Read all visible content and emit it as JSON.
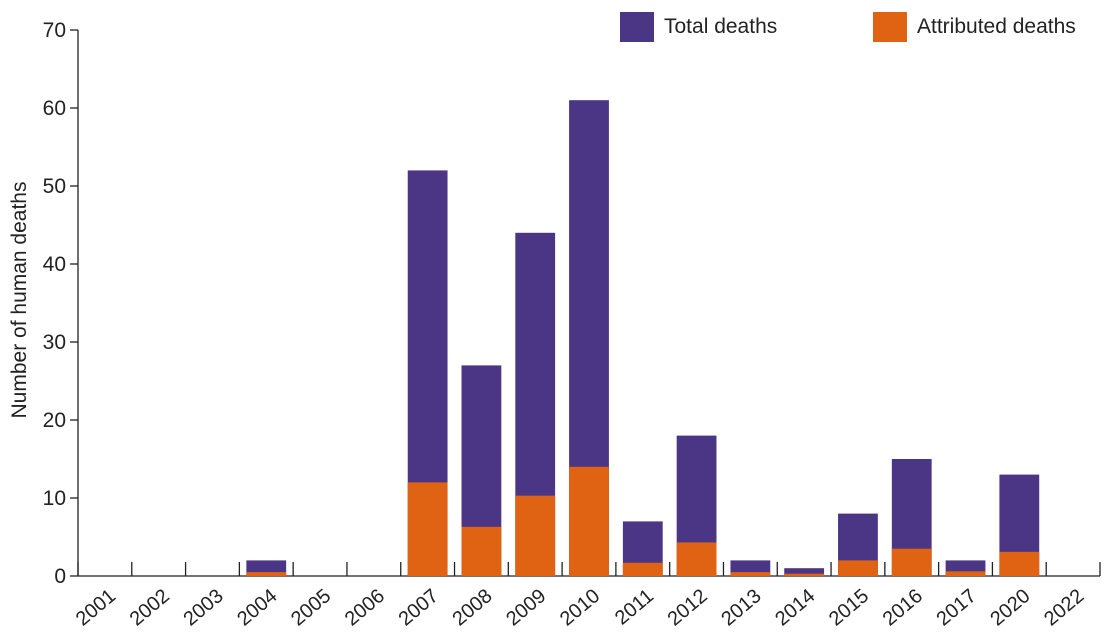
{
  "chart_data": {
    "type": "bar",
    "stacked": true,
    "categories": [
      "2001",
      "2002",
      "2003",
      "2004",
      "2005",
      "2006",
      "2007",
      "2008",
      "2009",
      "2010",
      "2011",
      "2012",
      "2013",
      "2014",
      "2015",
      "2016",
      "2017",
      "2020",
      "2022"
    ],
    "series": [
      {
        "name": "Total deaths",
        "color": "#4b3585",
        "values": [
          0,
          0,
          0,
          2,
          0,
          0,
          52,
          27,
          44,
          61,
          7,
          18,
          2,
          1,
          8,
          15,
          2,
          13,
          0
        ]
      },
      {
        "name": "Attributed deaths",
        "color": "#e06314",
        "values": [
          0,
          0,
          0,
          0.5,
          0,
          0,
          12,
          6.3,
          10.3,
          14,
          1.7,
          4.3,
          0.5,
          0.3,
          2,
          3.5,
          0.6,
          3.1,
          0
        ]
      }
    ],
    "ylabel": "Number of human deaths",
    "xlabel": "",
    "ylim": [
      0,
      70
    ],
    "yticks": [
      0,
      10,
      20,
      30,
      40,
      50,
      60,
      70
    ],
    "legend_position": "top-right",
    "grid": false
  }
}
